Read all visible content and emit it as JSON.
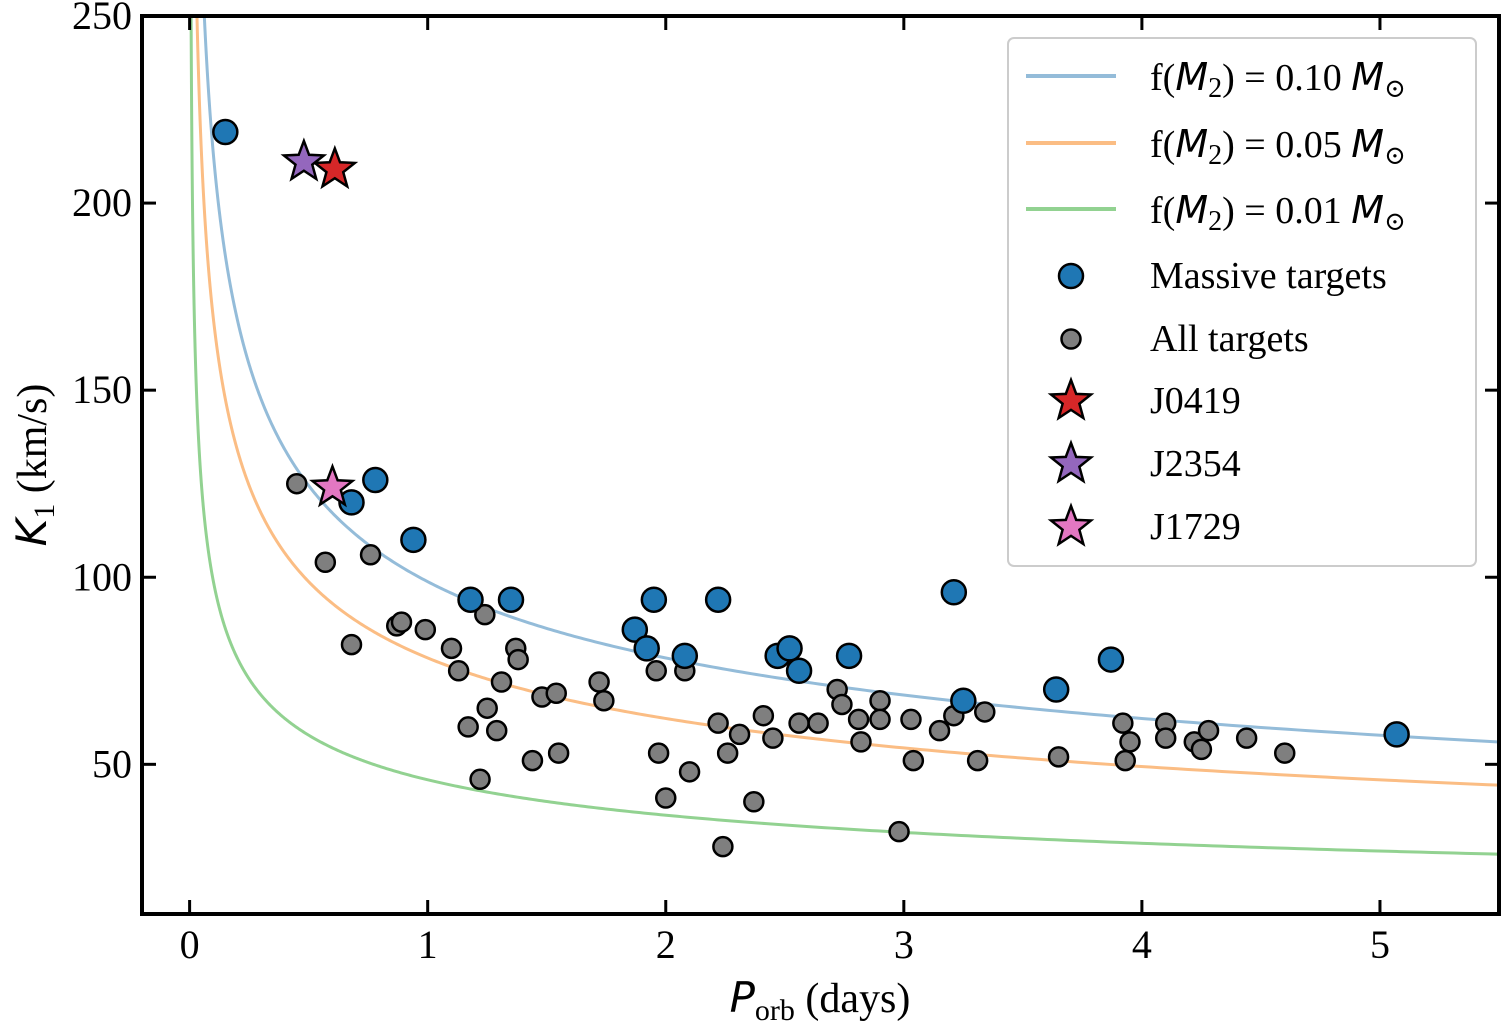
{
  "chart_data": {
    "type": "scatter",
    "xlabel": {
      "main": "P",
      "sub": "orb",
      "unit": " (days)"
    },
    "ylabel": {
      "main": "K",
      "sub": "1",
      "unit": " (km/s)"
    },
    "xlim": [
      -0.2,
      5.5
    ],
    "ylim": [
      10,
      250
    ],
    "xticks": [
      0,
      1,
      2,
      3,
      4,
      5
    ],
    "yticks": [
      50,
      100,
      150,
      200,
      250
    ],
    "grid": false,
    "legend_position": "top-right",
    "curves": [
      {
        "name_pre": "f(",
        "name_var": "M",
        "name_sub": "2",
        "name_mid": ") = 0.10 ",
        "name_unit": "M",
        "name_sym": "⊙",
        "mass_function": 0.1,
        "color": "#94bcd9"
      },
      {
        "name_pre": "f(",
        "name_var": "M",
        "name_sub": "2",
        "name_mid": ") = 0.05 ",
        "name_unit": "M",
        "name_sym": "⊙",
        "mass_function": 0.05,
        "color": "#fbbd84"
      },
      {
        "name_pre": "f(",
        "name_var": "M",
        "name_sub": "2",
        "name_mid": ") = 0.01 ",
        "name_unit": "M",
        "name_sym": "⊙",
        "mass_function": 0.01,
        "color": "#92d291"
      }
    ],
    "series": [
      {
        "name": "All targets",
        "marker": "circle",
        "color": "#7f7f7f",
        "points": [
          [
            0.45,
            125
          ],
          [
            0.57,
            104
          ],
          [
            0.68,
            82
          ],
          [
            0.76,
            106
          ],
          [
            0.87,
            87
          ],
          [
            0.89,
            88
          ],
          [
            0.99,
            86
          ],
          [
            1.1,
            81
          ],
          [
            1.13,
            75
          ],
          [
            1.17,
            60
          ],
          [
            1.22,
            46
          ],
          [
            1.24,
            90
          ],
          [
            1.25,
            65
          ],
          [
            1.29,
            59
          ],
          [
            1.31,
            72
          ],
          [
            1.37,
            81
          ],
          [
            1.38,
            78
          ],
          [
            1.44,
            51
          ],
          [
            1.48,
            68
          ],
          [
            1.54,
            69
          ],
          [
            1.55,
            53
          ],
          [
            1.72,
            72
          ],
          [
            1.74,
            67
          ],
          [
            1.96,
            75
          ],
          [
            1.97,
            53
          ],
          [
            2.0,
            41
          ],
          [
            2.08,
            75
          ],
          [
            2.1,
            48
          ],
          [
            2.22,
            61
          ],
          [
            2.24,
            28
          ],
          [
            2.26,
            53
          ],
          [
            2.31,
            58
          ],
          [
            2.37,
            40
          ],
          [
            2.41,
            63
          ],
          [
            2.45,
            57
          ],
          [
            2.56,
            61
          ],
          [
            2.64,
            61
          ],
          [
            2.72,
            70
          ],
          [
            2.74,
            66
          ],
          [
            2.81,
            62
          ],
          [
            2.82,
            56
          ],
          [
            2.9,
            67
          ],
          [
            2.9,
            62
          ],
          [
            2.98,
            32
          ],
          [
            3.03,
            62
          ],
          [
            3.04,
            51
          ],
          [
            3.15,
            59
          ],
          [
            3.21,
            63
          ],
          [
            3.31,
            51
          ],
          [
            3.34,
            64
          ],
          [
            3.65,
            52
          ],
          [
            3.92,
            61
          ],
          [
            3.93,
            51
          ],
          [
            3.95,
            56
          ],
          [
            4.1,
            61
          ],
          [
            4.1,
            57
          ],
          [
            4.22,
            56
          ],
          [
            4.25,
            54
          ],
          [
            4.28,
            59
          ],
          [
            4.44,
            57
          ],
          [
            4.6,
            53
          ]
        ]
      },
      {
        "name": "Massive targets",
        "marker": "circle",
        "color": "#1f77b4",
        "points": [
          [
            0.15,
            219
          ],
          [
            0.68,
            120
          ],
          [
            0.78,
            126
          ],
          [
            0.94,
            110
          ],
          [
            1.18,
            94
          ],
          [
            1.35,
            94
          ],
          [
            1.87,
            86
          ],
          [
            1.92,
            81
          ],
          [
            1.95,
            94
          ],
          [
            2.08,
            79
          ],
          [
            2.22,
            94
          ],
          [
            2.47,
            79
          ],
          [
            2.52,
            81
          ],
          [
            2.56,
            75
          ],
          [
            2.77,
            79
          ],
          [
            3.21,
            96
          ],
          [
            3.25,
            67
          ],
          [
            3.64,
            70
          ],
          [
            3.87,
            78
          ],
          [
            5.07,
            58
          ]
        ]
      },
      {
        "name": "J0419",
        "marker": "star",
        "color": "#d62728",
        "points": [
          [
            0.61,
            209
          ]
        ]
      },
      {
        "name": "J2354",
        "marker": "star",
        "color": "#9467bd",
        "points": [
          [
            0.48,
            211
          ]
        ]
      },
      {
        "name": "J1729",
        "marker": "star",
        "color": "#e377c2",
        "points": [
          [
            0.6,
            124
          ]
        ]
      }
    ]
  }
}
